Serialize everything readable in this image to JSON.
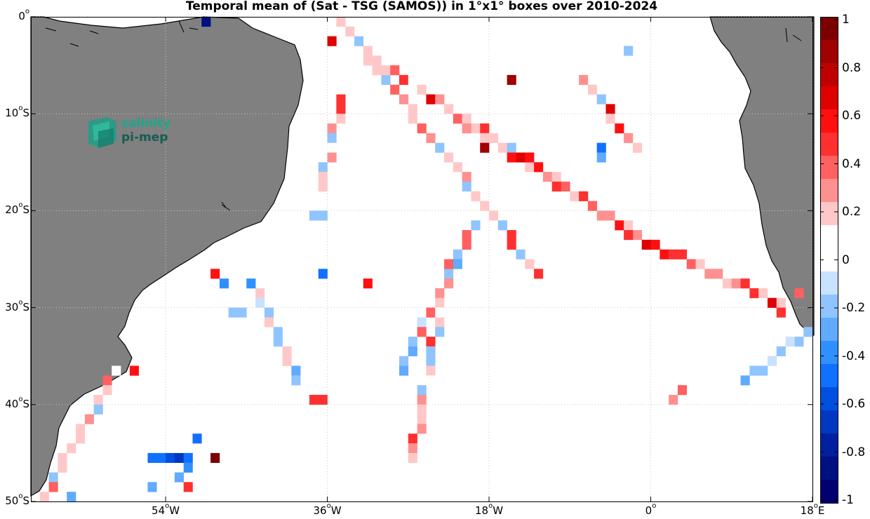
{
  "chart_data": {
    "type": "heatmap",
    "title": "Temporal mean of (Sat - TSG (SAMOS)) in 1°x1° boxes over 2010-2024",
    "lon_range": [
      -69,
      18
    ],
    "lat_range": [
      -50,
      0
    ],
    "x_ticks": [
      {
        "lon": -54,
        "label": "54",
        "sup": "o",
        "suffix": "W"
      },
      {
        "lon": -36,
        "label": "36",
        "sup": "o",
        "suffix": "W"
      },
      {
        "lon": -18,
        "label": "18",
        "sup": "o",
        "suffix": "W"
      },
      {
        "lon": 0,
        "label": "0",
        "sup": "o",
        "suffix": ""
      },
      {
        "lon": 18,
        "label": "18",
        "sup": "o",
        "suffix": "E"
      }
    ],
    "y_ticks": [
      {
        "lat": 0,
        "label": "0",
        "sup": "o",
        "suffix": ""
      },
      {
        "lat": -10,
        "label": "10",
        "sup": "o",
        "suffix": "S"
      },
      {
        "lat": -20,
        "label": "20",
        "sup": "o",
        "suffix": "S"
      },
      {
        "lat": -30,
        "label": "30",
        "sup": "o",
        "suffix": "S"
      },
      {
        "lat": -40,
        "label": "40",
        "sup": "o",
        "suffix": "S"
      },
      {
        "lat": -50,
        "label": "50",
        "sup": "o",
        "suffix": "S"
      }
    ],
    "grid": "dotted",
    "colorbar": {
      "min": -1,
      "max": 1,
      "ticks": [
        "1",
        "0.8",
        "0.6",
        "0.4",
        "0.2",
        "0",
        "-0.2",
        "-0.4",
        "-0.6",
        "-0.8",
        "-1"
      ],
      "colors_top_to_bottom": [
        "#7d0000",
        "#9f0000",
        "#c00000",
        "#df0000",
        "#ff1010",
        "#ff3030",
        "#ff6060",
        "#ff9090",
        "#ffc8c8",
        "#ffffff",
        "#ffffff",
        "#c8e2ff",
        "#90c4ff",
        "#60aaff",
        "#3090ff",
        "#1070ff",
        "#0050e0",
        "#0038c0",
        "#0020a0",
        "#001080",
        "#000070"
      ]
    },
    "segments": [
      {
        "from": [
          -34.5,
          -0.5
        ],
        "to": [
          -12.5,
          -26.5
        ],
        "value": 0.2,
        "jitter": 0.3
      },
      {
        "from": [
          -30.5,
          -4.5
        ],
        "to": [
          -6.5,
          -19.5
        ],
        "value": 0.3,
        "jitter": 0.4
      },
      {
        "from": [
          -21.5,
          -10.5
        ],
        "to": [
          -1.5,
          -22.5
        ],
        "value": 0.45,
        "jitter": 0.3
      },
      {
        "from": [
          -2.5,
          -22.5
        ],
        "to": [
          14.5,
          -29.5
        ],
        "value": 0.35,
        "jitter": 0.3
      },
      {
        "from": [
          -8.5,
          -5.5
        ],
        "to": [
          -1.5,
          -13.5
        ],
        "value": 0.25,
        "jitter": 0.4
      },
      {
        "from": [
          -19.5,
          -21.5
        ],
        "to": [
          -28.5,
          -37.5
        ],
        "value": 0.1,
        "jitter": 0.4
      },
      {
        "from": [
          -34.5,
          -8.5
        ],
        "to": [
          -36.5,
          -17.5
        ],
        "value": 0.25,
        "jitter": 0.3
      },
      {
        "from": [
          -59.5,
          -36.5
        ],
        "to": [
          -67.5,
          -49.5
        ],
        "value": 0.25,
        "jitter": 0.3
      },
      {
        "from": [
          -22.5,
          -25.5
        ],
        "to": [
          -26.5,
          -45.5
        ],
        "value": 0.25,
        "jitter": 0.3
      },
      {
        "from": [
          -44.5,
          -27.5
        ],
        "to": [
          -39.5,
          -37.5
        ],
        "value": -0.2,
        "jitter": 0.3
      },
      {
        "from": [
          17.5,
          -32.5
        ],
        "to": [
          10.5,
          -37.5
        ],
        "value": -0.25,
        "jitter": 0.15
      }
    ],
    "cells": [
      {
        "lon": -49.5,
        "lat": -0.5,
        "value": -0.9
      },
      {
        "lon": -35.5,
        "lat": -2.5,
        "value": 0.7
      },
      {
        "lon": -30.5,
        "lat": -5.5,
        "value": 0.8
      },
      {
        "lon": -15.5,
        "lat": -6.5,
        "value": 0.9
      },
      {
        "lon": -18.5,
        "lat": -13.5,
        "value": 0.9
      },
      {
        "lon": -13.5,
        "lat": -14.5,
        "value": 0.6
      },
      {
        "lon": -5.5,
        "lat": -13.5,
        "value": -0.5
      },
      {
        "lon": -5.5,
        "lat": -14.5,
        "value": -0.3
      },
      {
        "lon": -2.5,
        "lat": -3.5,
        "value": -0.2
      },
      {
        "lon": -47.5,
        "lat": -27.5,
        "value": -0.4
      },
      {
        "lon": -48.5,
        "lat": -26.5,
        "value": 0.6
      },
      {
        "lon": -36.5,
        "lat": -26.5,
        "value": -0.5
      },
      {
        "lon": -31.5,
        "lat": -27.5,
        "value": 0.6
      },
      {
        "lon": -57.5,
        "lat": -36.5,
        "value": 0.6
      },
      {
        "lon": -48.5,
        "lat": -45.5,
        "value": 0.95
      },
      {
        "lon": -54.5,
        "lat": -45.5,
        "value": -0.5
      },
      {
        "lon": -55.5,
        "lat": -45.5,
        "value": -0.5
      },
      {
        "lon": -53.5,
        "lat": -45.5,
        "value": -0.55
      },
      {
        "lon": -52.5,
        "lat": -45.5,
        "value": -0.7
      },
      {
        "lon": -51.5,
        "lat": -45.5,
        "value": -0.5
      },
      {
        "lon": -51.5,
        "lat": -46.5,
        "value": -0.4
      },
      {
        "lon": -50.5,
        "lat": -43.5,
        "value": -0.5
      },
      {
        "lon": -52.5,
        "lat": -47.5,
        "value": -0.3
      },
      {
        "lon": -51.5,
        "lat": -48.5,
        "value": 0.5
      },
      {
        "lon": -37.5,
        "lat": -39.5,
        "value": 0.5
      },
      {
        "lon": -36.5,
        "lat": -39.5,
        "value": 0.5
      },
      {
        "lon": -45.5,
        "lat": -30.5,
        "value": -0.2
      },
      {
        "lon": -46.5,
        "lat": -30.5,
        "value": -0.2
      },
      {
        "lon": 14.5,
        "lat": -30.5,
        "value": 0.5
      },
      {
        "lon": 16.5,
        "lat": -28.5,
        "value": 0.4
      },
      {
        "lon": 3.5,
        "lat": -38.5,
        "value": 0.4
      },
      {
        "lon": 2.5,
        "lat": -39.5,
        "value": 0.3
      },
      {
        "lon": -36.5,
        "lat": -20.5,
        "value": -0.15
      },
      {
        "lon": -37.5,
        "lat": -20.5,
        "value": -0.15
      },
      {
        "lon": -55.5,
        "lat": -48.5,
        "value": -0.3
      },
      {
        "lon": -64.5,
        "lat": -49.5,
        "value": -0.3
      }
    ]
  },
  "logo": {
    "line1": "salinity",
    "line2": "pi-mep"
  }
}
